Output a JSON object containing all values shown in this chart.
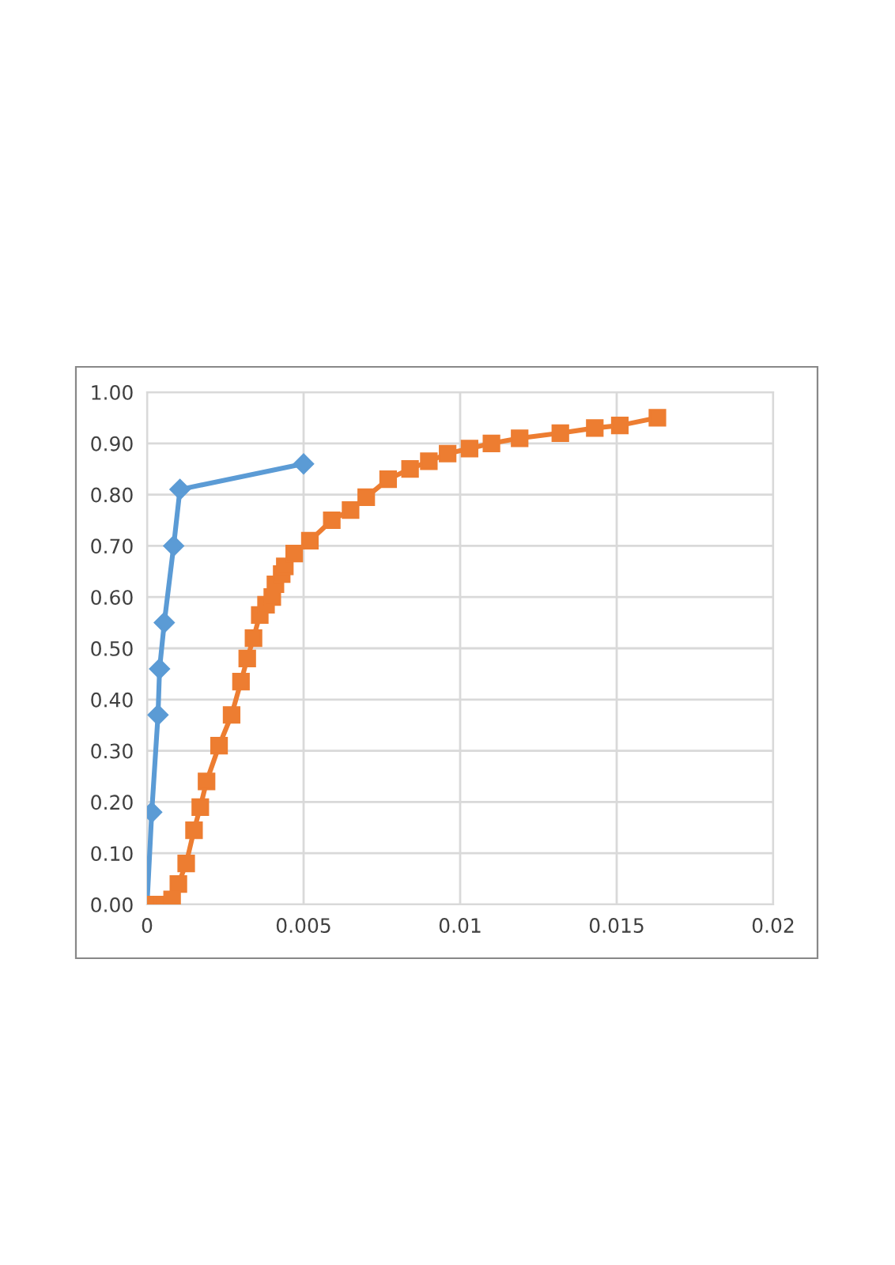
{
  "chart_data": {
    "type": "line",
    "xlim": [
      0,
      0.02
    ],
    "xticks": [
      0,
      0.005,
      0.01,
      0.015,
      0.02
    ],
    "ylim": [
      0,
      1.0
    ],
    "yticks": [
      {
        "value": 0,
        "label": "0.00"
      },
      {
        "value": 0.1,
        "label": "0.10"
      },
      {
        "value": 0.2,
        "label": "0.20"
      },
      {
        "value": 0.3,
        "label": "0.30"
      },
      {
        "value": 0.4,
        "label": "0.40"
      },
      {
        "value": 0.5,
        "label": "0.50"
      },
      {
        "value": 0.6,
        "label": "0.60"
      },
      {
        "value": 0.7,
        "label": "0.70"
      },
      {
        "value": 0.8,
        "label": "0.80"
      },
      {
        "value": 0.9,
        "label": "0.90"
      },
      {
        "value": 1.0,
        "label": "1.00"
      }
    ],
    "grid": true,
    "line_style": "solid",
    "series": [
      {
        "color": "#5b9bd5",
        "marker": "diamond",
        "x": [
          0,
          0.00015,
          0.00035,
          0.0004,
          0.00055,
          0.00085,
          0.00105,
          0.005
        ],
        "values": [
          0,
          0.18,
          0.37,
          0.46,
          0.55,
          0.7,
          0.81,
          0.86
        ]
      },
      {
        "color": "#ed7d31",
        "marker": "square",
        "x": [
          0,
          0.00025,
          0.0005,
          0.0008,
          0.001,
          0.00125,
          0.0015,
          0.0017,
          0.0019,
          0.0023,
          0.0027,
          0.003,
          0.0032,
          0.0034,
          0.0036,
          0.0038,
          0.004,
          0.0041,
          0.0043,
          0.0044,
          0.0047,
          0.0052,
          0.0059,
          0.0065,
          0.007,
          0.0077,
          0.0084,
          0.009,
          0.0096,
          0.0103,
          0.011,
          0.0119,
          0.0132,
          0.0143,
          0.0151,
          0.0163
        ],
        "values": [
          0,
          0,
          0,
          0.01,
          0.04,
          0.08,
          0.145,
          0.19,
          0.24,
          0.31,
          0.37,
          0.435,
          0.48,
          0.52,
          0.565,
          0.585,
          0.6,
          0.625,
          0.645,
          0.66,
          0.685,
          0.71,
          0.75,
          0.77,
          0.795,
          0.83,
          0.85,
          0.865,
          0.88,
          0.89,
          0.9,
          0.91,
          0.92,
          0.93,
          0.935,
          0.95
        ]
      }
    ]
  }
}
